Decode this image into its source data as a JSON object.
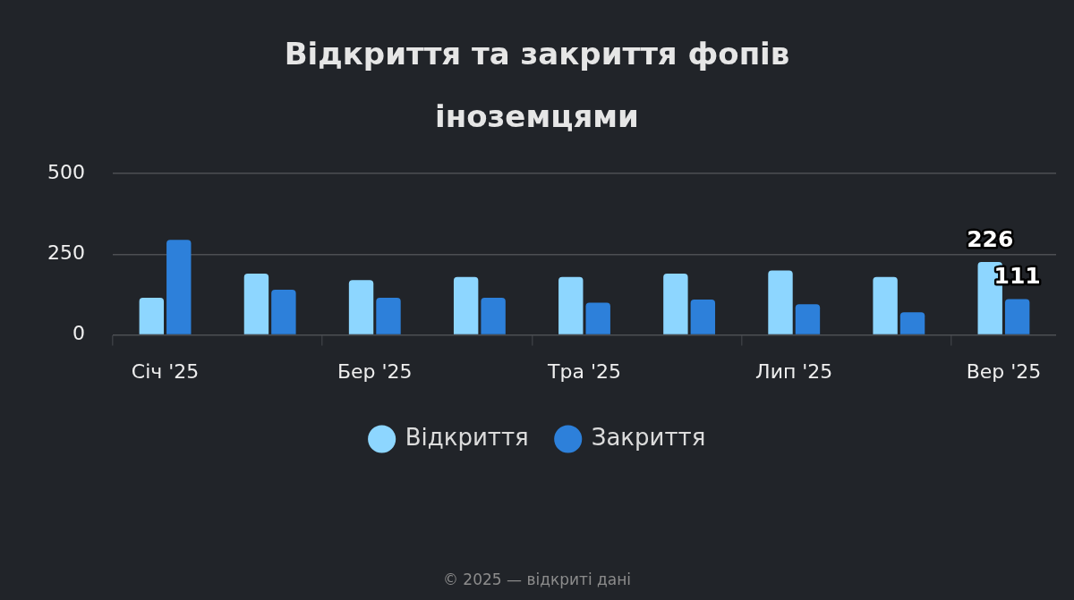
{
  "chart_data": {
    "type": "bar",
    "title": "Відкриття та закриття фопів іноземцями",
    "categories": [
      "Січ '25",
      null,
      "Бер '25",
      null,
      "Тра '25",
      null,
      "Лип '25",
      null,
      "Вер '25"
    ],
    "series": [
      {
        "name": "Відкриття",
        "color": "#8dd6ff",
        "values": [
          115,
          190,
          170,
          180,
          180,
          190,
          200,
          180,
          226
        ],
        "value_labels": [
          null,
          null,
          null,
          null,
          null,
          null,
          null,
          null,
          "226"
        ]
      },
      {
        "name": "Закриття",
        "color": "#2d80da",
        "values": [
          295,
          140,
          115,
          115,
          100,
          110,
          95,
          70,
          111
        ],
        "value_labels": [
          null,
          null,
          null,
          null,
          null,
          null,
          null,
          null,
          "111"
        ]
      }
    ],
    "ylim": [
      0,
      500
    ],
    "yticks": [
      0,
      250,
      500
    ],
    "grid": "y",
    "legend": "bottom",
    "annotations": [
      "© 2025 — відкриті дані"
    ]
  }
}
